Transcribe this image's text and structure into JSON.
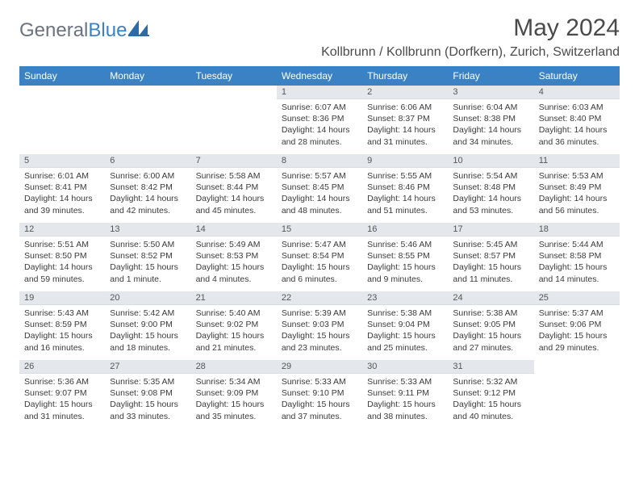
{
  "brand": {
    "part1": "General",
    "part2": "Blue"
  },
  "title": "May 2024",
  "location": "Kollbrunn / Kollbrunn (Dorfkern), Zurich, Switzerland",
  "colors": {
    "header_bg": "#3b82c4",
    "header_text": "#ffffff",
    "daynum_bg": "#e4e8ec",
    "body_text": "#3a3a3a",
    "brand_gray": "#6b7280",
    "brand_blue": "#3b82c4"
  },
  "weekdays": [
    "Sunday",
    "Monday",
    "Tuesday",
    "Wednesday",
    "Thursday",
    "Friday",
    "Saturday"
  ],
  "weeks": [
    [
      null,
      null,
      null,
      {
        "n": "1",
        "sr": "6:07 AM",
        "ss": "8:36 PM",
        "dl": "14 hours and 28 minutes."
      },
      {
        "n": "2",
        "sr": "6:06 AM",
        "ss": "8:37 PM",
        "dl": "14 hours and 31 minutes."
      },
      {
        "n": "3",
        "sr": "6:04 AM",
        "ss": "8:38 PM",
        "dl": "14 hours and 34 minutes."
      },
      {
        "n": "4",
        "sr": "6:03 AM",
        "ss": "8:40 PM",
        "dl": "14 hours and 36 minutes."
      }
    ],
    [
      {
        "n": "5",
        "sr": "6:01 AM",
        "ss": "8:41 PM",
        "dl": "14 hours and 39 minutes."
      },
      {
        "n": "6",
        "sr": "6:00 AM",
        "ss": "8:42 PM",
        "dl": "14 hours and 42 minutes."
      },
      {
        "n": "7",
        "sr": "5:58 AM",
        "ss": "8:44 PM",
        "dl": "14 hours and 45 minutes."
      },
      {
        "n": "8",
        "sr": "5:57 AM",
        "ss": "8:45 PM",
        "dl": "14 hours and 48 minutes."
      },
      {
        "n": "9",
        "sr": "5:55 AM",
        "ss": "8:46 PM",
        "dl": "14 hours and 51 minutes."
      },
      {
        "n": "10",
        "sr": "5:54 AM",
        "ss": "8:48 PM",
        "dl": "14 hours and 53 minutes."
      },
      {
        "n": "11",
        "sr": "5:53 AM",
        "ss": "8:49 PM",
        "dl": "14 hours and 56 minutes."
      }
    ],
    [
      {
        "n": "12",
        "sr": "5:51 AM",
        "ss": "8:50 PM",
        "dl": "14 hours and 59 minutes."
      },
      {
        "n": "13",
        "sr": "5:50 AM",
        "ss": "8:52 PM",
        "dl": "15 hours and 1 minute."
      },
      {
        "n": "14",
        "sr": "5:49 AM",
        "ss": "8:53 PM",
        "dl": "15 hours and 4 minutes."
      },
      {
        "n": "15",
        "sr": "5:47 AM",
        "ss": "8:54 PM",
        "dl": "15 hours and 6 minutes."
      },
      {
        "n": "16",
        "sr": "5:46 AM",
        "ss": "8:55 PM",
        "dl": "15 hours and 9 minutes."
      },
      {
        "n": "17",
        "sr": "5:45 AM",
        "ss": "8:57 PM",
        "dl": "15 hours and 11 minutes."
      },
      {
        "n": "18",
        "sr": "5:44 AM",
        "ss": "8:58 PM",
        "dl": "15 hours and 14 minutes."
      }
    ],
    [
      {
        "n": "19",
        "sr": "5:43 AM",
        "ss": "8:59 PM",
        "dl": "15 hours and 16 minutes."
      },
      {
        "n": "20",
        "sr": "5:42 AM",
        "ss": "9:00 PM",
        "dl": "15 hours and 18 minutes."
      },
      {
        "n": "21",
        "sr": "5:40 AM",
        "ss": "9:02 PM",
        "dl": "15 hours and 21 minutes."
      },
      {
        "n": "22",
        "sr": "5:39 AM",
        "ss": "9:03 PM",
        "dl": "15 hours and 23 minutes."
      },
      {
        "n": "23",
        "sr": "5:38 AM",
        "ss": "9:04 PM",
        "dl": "15 hours and 25 minutes."
      },
      {
        "n": "24",
        "sr": "5:38 AM",
        "ss": "9:05 PM",
        "dl": "15 hours and 27 minutes."
      },
      {
        "n": "25",
        "sr": "5:37 AM",
        "ss": "9:06 PM",
        "dl": "15 hours and 29 minutes."
      }
    ],
    [
      {
        "n": "26",
        "sr": "5:36 AM",
        "ss": "9:07 PM",
        "dl": "15 hours and 31 minutes."
      },
      {
        "n": "27",
        "sr": "5:35 AM",
        "ss": "9:08 PM",
        "dl": "15 hours and 33 minutes."
      },
      {
        "n": "28",
        "sr": "5:34 AM",
        "ss": "9:09 PM",
        "dl": "15 hours and 35 minutes."
      },
      {
        "n": "29",
        "sr": "5:33 AM",
        "ss": "9:10 PM",
        "dl": "15 hours and 37 minutes."
      },
      {
        "n": "30",
        "sr": "5:33 AM",
        "ss": "9:11 PM",
        "dl": "15 hours and 38 minutes."
      },
      {
        "n": "31",
        "sr": "5:32 AM",
        "ss": "9:12 PM",
        "dl": "15 hours and 40 minutes."
      },
      null
    ]
  ],
  "labels": {
    "sunrise": "Sunrise:",
    "sunset": "Sunset:",
    "daylight": "Daylight:"
  }
}
